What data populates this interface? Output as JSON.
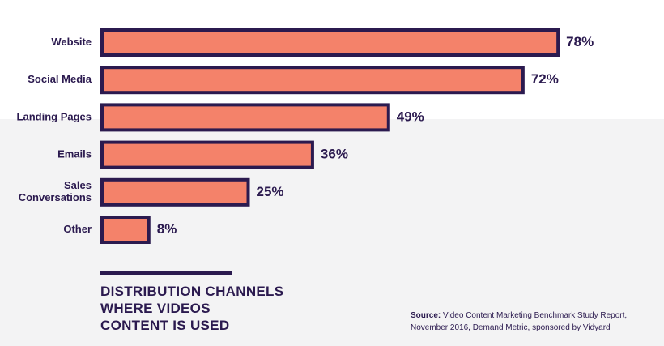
{
  "chart_data": {
    "type": "bar",
    "orientation": "horizontal",
    "title": "DISTRIBUTION CHANNELS WHERE VIDEOS CONTENT IS USED",
    "title_lines": [
      "DISTRIBUTION CHANNELS",
      "WHERE VIDEOS",
      "CONTENT IS USED"
    ],
    "categories": [
      [
        "Website"
      ],
      [
        "Social Media"
      ],
      [
        "Landing Pages"
      ],
      [
        "Emails"
      ],
      [
        "Sales",
        "Conversations"
      ],
      [
        "Other"
      ]
    ],
    "values": [
      78,
      72,
      49,
      36,
      25,
      8
    ],
    "value_labels": [
      "78%",
      "72%",
      "49%",
      "36%",
      "25%",
      "8%"
    ],
    "unit": "%",
    "xlim": [
      0,
      100
    ],
    "grid": false,
    "legend": "none",
    "colors": {
      "bar_fill": "#f4826a",
      "bar_stroke": "#2b1a4f",
      "text": "#2b1a4f"
    }
  },
  "source": {
    "label": "Source:",
    "line1": "Video Content Marketing Benchmark Study Report,",
    "line2": "November 2016, Demand Metric, sponsored by Vidyard"
  }
}
